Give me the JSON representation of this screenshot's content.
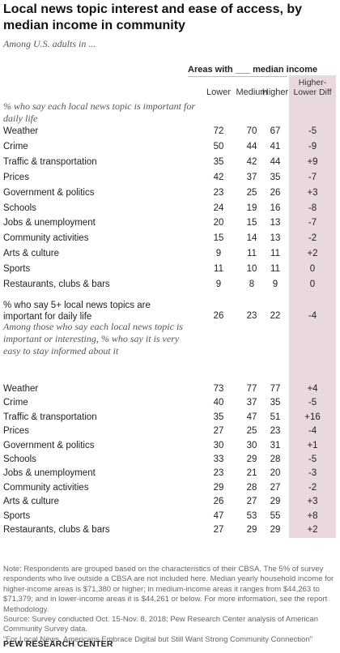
{
  "title": "Local news topic interest and ease of access, by median income in community",
  "subtitle": "Among U.S. adults in ...",
  "group_header": "Areas with ___ median income",
  "columns": {
    "lower": "Lower",
    "medium": "Medium",
    "higher": "Higher",
    "diff": "Higher-Lower Diff"
  },
  "colors": {
    "diff_band": "#e9d9dc"
  },
  "chart_data": {
    "type": "table",
    "title": "Local news topic interest and ease of access, by median income in community",
    "columns": [
      "Lower",
      "Medium",
      "Higher",
      "Higher-Lower Diff"
    ],
    "sections": [
      {
        "heading": "% who say each local news topic is important for daily life",
        "rows": [
          {
            "label": "Weather",
            "values": [
              "72",
              "70",
              "67",
              "-5"
            ]
          },
          {
            "label": "Crime",
            "values": [
              "50",
              "44",
              "41",
              "-9"
            ]
          },
          {
            "label": "Traffic & transportation",
            "values": [
              "35",
              "42",
              "44",
              "+9"
            ]
          },
          {
            "label": "Prices",
            "values": [
              "42",
              "37",
              "35",
              "-7"
            ]
          },
          {
            "label": "Government & politics",
            "values": [
              "23",
              "25",
              "26",
              "+3"
            ]
          },
          {
            "label": "Schools",
            "values": [
              "24",
              "19",
              "16",
              "-8"
            ]
          },
          {
            "label": "Jobs & unemployment",
            "values": [
              "20",
              "15",
              "13",
              "-7"
            ]
          },
          {
            "label": "Community activities",
            "values": [
              "15",
              "14",
              "13",
              "-2"
            ]
          },
          {
            "label": "Arts & culture",
            "values": [
              "9",
              "11",
              "11",
              "+2"
            ]
          },
          {
            "label": "Sports",
            "values": [
              "11",
              "10",
              "11",
              "0"
            ]
          },
          {
            "label": "Restaurants, clubs & bars",
            "values": [
              "9",
              "8",
              "9",
              "0"
            ]
          }
        ]
      },
      {
        "heading": "",
        "rows": [
          {
            "label": "% who say 5+ local news topics are important for daily life",
            "values": [
              "26",
              "23",
              "22",
              "-4"
            ]
          }
        ]
      },
      {
        "heading": "Among those who say each local news topic is important or interesting, % who say it is very easy to stay informed about it",
        "rows": [
          {
            "label": "Weather",
            "values": [
              "73",
              "77",
              "77",
              "+4"
            ]
          },
          {
            "label": "Crime",
            "values": [
              "40",
              "37",
              "35",
              "-5"
            ]
          },
          {
            "label": "Traffic & transportation",
            "values": [
              "35",
              "47",
              "51",
              "+16"
            ]
          },
          {
            "label": "Prices",
            "values": [
              "27",
              "25",
              "23",
              "-4"
            ]
          },
          {
            "label": "Government & politics",
            "values": [
              "30",
              "30",
              "31",
              "+1"
            ]
          },
          {
            "label": "Schools",
            "values": [
              "33",
              "29",
              "28",
              "-5"
            ]
          },
          {
            "label": "Jobs & unemployment",
            "values": [
              "23",
              "21",
              "20",
              "-3"
            ]
          },
          {
            "label": "Community activities",
            "values": [
              "29",
              "28",
              "27",
              "-2"
            ]
          },
          {
            "label": "Arts & culture",
            "values": [
              "26",
              "27",
              "29",
              "+3"
            ]
          },
          {
            "label": "Sports",
            "values": [
              "47",
              "53",
              "55",
              "+8"
            ]
          },
          {
            "label": "Restaurants, clubs & bars",
            "values": [
              "27",
              "29",
              "29",
              "+2"
            ]
          }
        ]
      }
    ]
  },
  "notes": [
    "Note: Respondents are grouped based on the characteristics of their CBSA. The 5% of survey respondents who live outside a CBSA are not included here. Median yearly household income for higher-income areas is $71,380 or higher; in medium-income areas it ranges from $44,263 to $71,379; and in lower-income areas it is $44,261 or below. For more information, see the report Methodology.",
    "Source: Survey conducted Oct. 15-Nov. 8, 2018; Pew Research Center analysis of American Community Survey data.",
    "“For Local News, Americans Embrace Digital but Still Want Strong Community Connection”"
  ],
  "brand": "PEW RESEARCH CENTER"
}
